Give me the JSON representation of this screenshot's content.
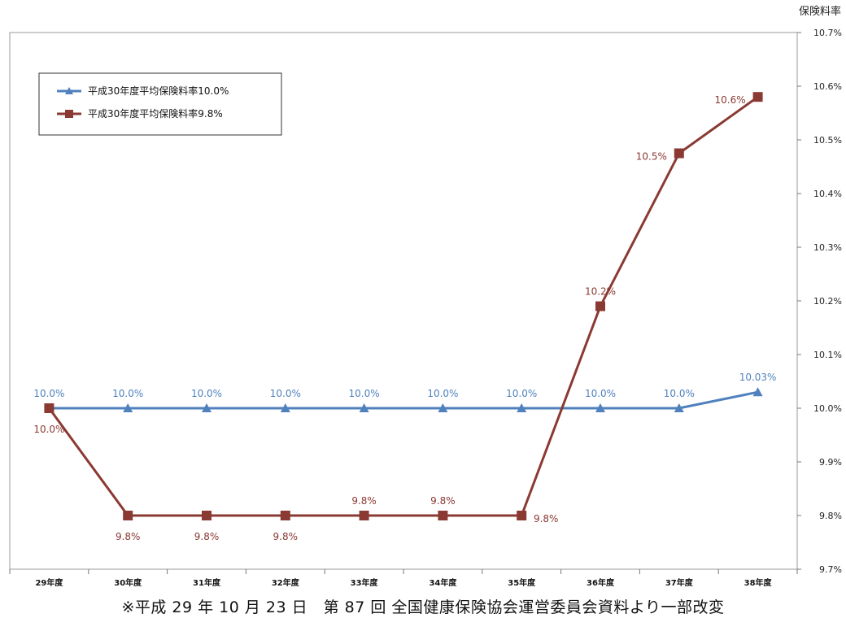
{
  "chart_data": {
    "type": "line",
    "categories": [
      "29年度",
      "30年度",
      "31年度",
      "32年度",
      "33年度",
      "34年度",
      "35年度",
      "36年度",
      "37年度",
      "38年度"
    ],
    "ylabel": "保険料率",
    "ylim": [
      9.7,
      10.7
    ],
    "yticks": [
      9.7,
      9.8,
      9.9,
      10.0,
      10.1,
      10.2,
      10.3,
      10.4,
      10.5,
      10.6,
      10.7
    ],
    "yaxis_position": "right",
    "legend_position": "top-left",
    "series": [
      {
        "name": "平成30年度平均保険料率10.0%",
        "color": "#4f81bd",
        "marker": "triangle",
        "values": [
          10.0,
          10.0,
          10.0,
          10.0,
          10.0,
          10.0,
          10.0,
          10.0,
          10.0,
          10.03
        ],
        "labels": [
          "10.0%",
          "10.0%",
          "10.0%",
          "10.0%",
          "10.0%",
          "10.0%",
          "10.0%",
          "10.0%",
          "10.0%",
          "10.03%"
        ]
      },
      {
        "name": "平成30年度平均保険料率9.8%",
        "color": "#8b3a33",
        "marker": "square",
        "values": [
          10.0,
          9.8,
          9.8,
          9.8,
          9.8,
          9.8,
          9.8,
          10.19,
          10.475,
          10.58
        ],
        "labels": [
          "10.0%",
          "9.8%",
          "9.8%",
          "9.8%",
          "9.8%",
          "9.8%",
          "9.8%",
          "10.2%",
          "10.5%",
          "10.6%"
        ]
      }
    ]
  },
  "footnote": "※平成 29 年 10 月 23 日　第 87 回 全国健康保険協会運営委員会資料より一部改変"
}
